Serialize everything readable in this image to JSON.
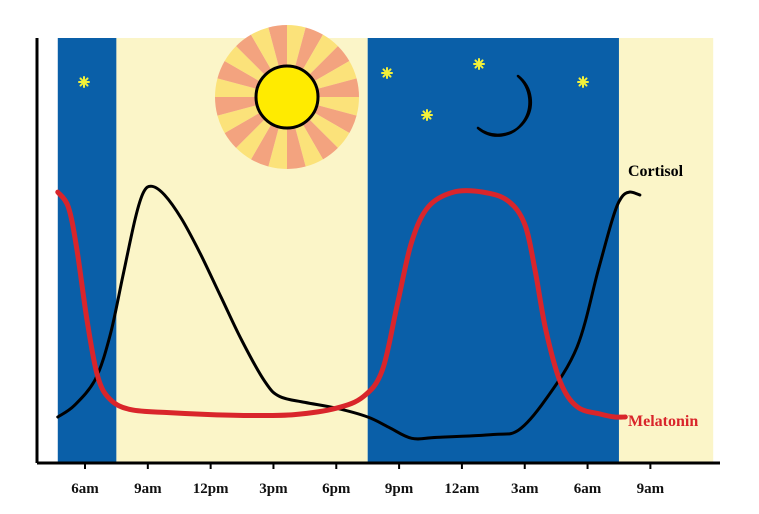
{
  "chart_data": {
    "type": "line",
    "title": "",
    "xlabel": "",
    "ylabel": "",
    "x_ticks": [
      "6am",
      "9am",
      "12pm",
      "3pm",
      "6pm",
      "9pm",
      "12am",
      "3am",
      "6am",
      "9am"
    ],
    "x_range_hours": [
      4.7,
      36
    ],
    "y_range": [
      0,
      100
    ],
    "grid": false,
    "background_bands": [
      {
        "kind": "night",
        "start": 4.7,
        "end": 7.5,
        "color": "#0a5fa8"
      },
      {
        "kind": "day",
        "start": 7.5,
        "end": 19.5,
        "color": "#fbf5c8"
      },
      {
        "kind": "night",
        "start": 19.5,
        "end": 31.5,
        "color": "#0a5fa8"
      },
      {
        "kind": "day",
        "start": 31.5,
        "end": 36,
        "color": "#fbf5c8"
      }
    ],
    "series": [
      {
        "name": "Cortisol",
        "color": "#000000",
        "points": [
          [
            4.7,
            12
          ],
          [
            5.5,
            16
          ],
          [
            6.5,
            25
          ],
          [
            7.2,
            40
          ],
          [
            7.8,
            60
          ],
          [
            8.4,
            80
          ],
          [
            8.8,
            89
          ],
          [
            9.2,
            91
          ],
          [
            9.8,
            88
          ],
          [
            10.6,
            80
          ],
          [
            11.5,
            68
          ],
          [
            12.5,
            53
          ],
          [
            13.5,
            38
          ],
          [
            14.6,
            24
          ],
          [
            15.3,
            19
          ],
          [
            16.5,
            17
          ],
          [
            18,
            15
          ],
          [
            19.5,
            12
          ],
          [
            20.5,
            8.5
          ],
          [
            21.6,
            4.7
          ],
          [
            22.8,
            5
          ],
          [
            25.5,
            6
          ],
          [
            26.7,
            7.5
          ],
          [
            28,
            18
          ],
          [
            29.5,
            36
          ],
          [
            30.5,
            62
          ],
          [
            31.2,
            80
          ],
          [
            31.6,
            87
          ],
          [
            32,
            89
          ],
          [
            32.5,
            88
          ]
        ]
      },
      {
        "name": "Melatonin",
        "color": "#d9252b",
        "points": [
          [
            4.7,
            89
          ],
          [
            5.2,
            84
          ],
          [
            5.6,
            70
          ],
          [
            6.1,
            45
          ],
          [
            6.6,
            26
          ],
          [
            7.2,
            18
          ],
          [
            8.2,
            14.5
          ],
          [
            10,
            13.5
          ],
          [
            12,
            12.8
          ],
          [
            14,
            12.5
          ],
          [
            16,
            12.8
          ],
          [
            18,
            15
          ],
          [
            19.3,
            19
          ],
          [
            20.2,
            28
          ],
          [
            20.9,
            50
          ],
          [
            21.6,
            72
          ],
          [
            22.4,
            84
          ],
          [
            23.6,
            89
          ],
          [
            25,
            89
          ],
          [
            26.2,
            86
          ],
          [
            27,
            78
          ],
          [
            27.5,
            62
          ],
          [
            28,
            42
          ],
          [
            28.7,
            24
          ],
          [
            29.5,
            15.5
          ],
          [
            30.6,
            13
          ],
          [
            31.3,
            12
          ],
          [
            31.8,
            12
          ]
        ]
      }
    ],
    "series_label_text": {
      "cortisol": "Cortisol",
      "melatonin": "Melatonin"
    },
    "decorations": [
      "sun-icon",
      "moon-icon",
      "star-icon"
    ],
    "colors": {
      "night": "#0a5fa8",
      "day": "#fbf5c8",
      "cortisol": "#000000",
      "melatonin": "#d9252b",
      "sun": "#ffeb00",
      "sun_rays_a": "#f3a37f",
      "sun_rays_b": "#fbe27a",
      "star": "#f2f03a",
      "moon": "#fbe27a"
    }
  }
}
